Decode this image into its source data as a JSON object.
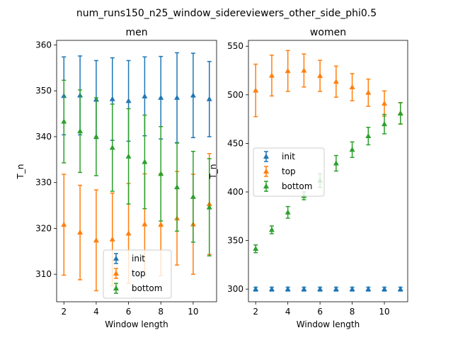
{
  "figure": {
    "suptitle": "num_runs150_n25_window_sidereviewers_other_side_phi0.5"
  },
  "colors": {
    "init": "#1f77b4",
    "top": "#ff7f0e",
    "bottom": "#2ca02c"
  },
  "chart_data": [
    {
      "type": "errorbar",
      "title": "men",
      "xlabel": "Window length",
      "ylabel": "T_n",
      "xlim": [
        1.55,
        11.45
      ],
      "ylim": [
        304,
        361
      ],
      "xticks": [
        2,
        4,
        6,
        8,
        10
      ],
      "yticks": [
        310,
        320,
        330,
        340,
        350,
        360
      ],
      "legend": {
        "position": "lower-center",
        "entries": [
          "init",
          "top",
          "bottom"
        ]
      },
      "x": [
        2,
        3,
        4,
        5,
        6,
        7,
        8,
        9,
        10,
        11
      ],
      "series": [
        {
          "name": "init",
          "marker": "triangle",
          "values": [
            348.9,
            349.0,
            348.1,
            348.2,
            347.8,
            348.8,
            348.5,
            348.5,
            349.0,
            348.2
          ],
          "errors": [
            8.5,
            8.6,
            8.5,
            9.0,
            8.8,
            8.6,
            9.0,
            9.8,
            9.2,
            8.2
          ]
        },
        {
          "name": "top",
          "marker": "triangle",
          "values": [
            320.8,
            319.1,
            317.4,
            317.6,
            318.9,
            320.9,
            320.8,
            322.2,
            320.9,
            325.3
          ],
          "errors": [
            11.0,
            10.3,
            11.0,
            10.1,
            10.9,
            11.0,
            11.1,
            10.2,
            10.9,
            11.0
          ]
        },
        {
          "name": "bottom",
          "marker": "triangle",
          "values": [
            343.3,
            341.2,
            340.0,
            337.6,
            335.7,
            334.5,
            331.9,
            329.0,
            326.9,
            324.6
          ],
          "errors": [
            9.0,
            9.0,
            8.5,
            9.5,
            10.4,
            10.2,
            10.3,
            9.6,
            9.9,
            10.6
          ]
        }
      ]
    },
    {
      "type": "errorbar",
      "title": "women",
      "xlabel": "Window length",
      "ylabel": "T_n",
      "xlim": [
        1.55,
        11.45
      ],
      "ylim": [
        287,
        556
      ],
      "xticks": [
        2,
        4,
        6,
        8,
        10
      ],
      "yticks": [
        300,
        350,
        400,
        450,
        500,
        550
      ],
      "legend": {
        "position": "center-left",
        "entries": [
          "init",
          "top",
          "bottom"
        ]
      },
      "x": [
        2,
        3,
        4,
        5,
        6,
        7,
        8,
        9,
        10,
        11
      ],
      "series": [
        {
          "name": "init",
          "marker": "triangle",
          "values": [
            300,
            300,
            300,
            300,
            300,
            300,
            300,
            300,
            300,
            300
          ],
          "errors": [
            2,
            2,
            2,
            2,
            2,
            2,
            2,
            2,
            2,
            2
          ]
        },
        {
          "name": "top",
          "marker": "triangle",
          "values": [
            504.5,
            519.8,
            524.5,
            525.0,
            519.5,
            513.5,
            507.8,
            502.2,
            491.0,
            481.0
          ],
          "errors": [
            27,
            21,
            21,
            17,
            16,
            16,
            14,
            14,
            13,
            11
          ]
        },
        {
          "name": "bottom",
          "marker": "triangle",
          "values": [
            341.5,
            361.0,
            379.0,
            396.0,
            411.7,
            429.5,
            443.5,
            457.5,
            469.8,
            480.8
          ],
          "errors": [
            4,
            4,
            6,
            4,
            7,
            8,
            8,
            9,
            10,
            11
          ]
        }
      ]
    }
  ]
}
